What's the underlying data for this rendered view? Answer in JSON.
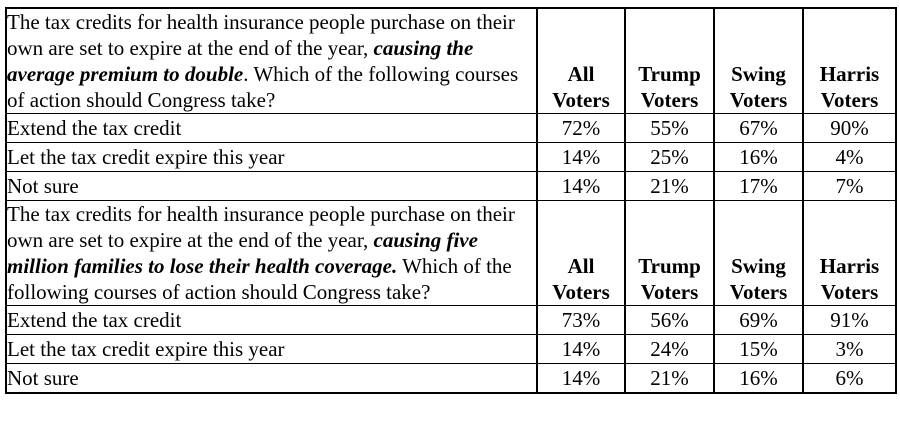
{
  "page": {
    "background_color": "#ffffff",
    "text_color": "#000000",
    "border_color": "#000000"
  },
  "columns": [
    "All Voters",
    "Trump Voters",
    "Swing Voters",
    "Harris Voters"
  ],
  "sections": [
    {
      "question": {
        "lead": "The tax credits for health insurance people purchase on their own are set to expire at the end of the year, ",
        "emphasis": "causing the average premium to double",
        "tail": ". Which of the following courses of action should Congress take?"
      },
      "rows": [
        {
          "label": "Extend the tax credit",
          "values": [
            "72%",
            "55%",
            "67%",
            "90%"
          ]
        },
        {
          "label": "Let the tax credit expire this year",
          "values": [
            "14%",
            "25%",
            "16%",
            "4%"
          ]
        },
        {
          "label": "Not sure",
          "values": [
            "14%",
            "21%",
            "17%",
            "7%"
          ]
        }
      ]
    },
    {
      "question": {
        "lead": "The tax credits for health insurance people purchase on their own are set to expire at the end of the year, ",
        "emphasis": "causing five million families to lose their health coverage.",
        "tail": " Which of the following courses of action should Congress take?"
      },
      "rows": [
        {
          "label": "Extend the tax credit",
          "values": [
            "73%",
            "56%",
            "69%",
            "91%"
          ]
        },
        {
          "label": "Let the tax credit expire this year",
          "values": [
            "14%",
            "24%",
            "15%",
            "3%"
          ]
        },
        {
          "label": "Not sure",
          "values": [
            "14%",
            "21%",
            "16%",
            "6%"
          ]
        }
      ]
    }
  ]
}
